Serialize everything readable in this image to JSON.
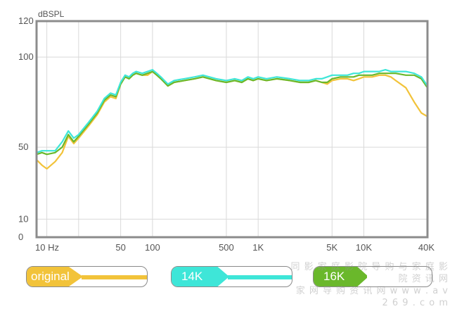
{
  "chart_data": {
    "type": "line",
    "ylabel": "dBSPL",
    "x_scale": "log",
    "xlim": [
      8,
      40000
    ],
    "ylim": [
      0,
      120
    ],
    "grid": true,
    "x_ticks": [
      {
        "label": "10 Hz",
        "value": 10
      },
      {
        "label": "50",
        "value": 50
      },
      {
        "label": "100",
        "value": 100
      },
      {
        "label": "500",
        "value": 500
      },
      {
        "label": "1K",
        "value": 1000
      },
      {
        "label": "5K",
        "value": 5000
      },
      {
        "label": "10K",
        "value": 10000
      },
      {
        "label": "40K",
        "value": 40000
      }
    ],
    "x_grid_extra": [
      20
    ],
    "y_ticks": [
      {
        "label": "120",
        "value": 120
      },
      {
        "label": "100",
        "value": 100
      },
      {
        "label": "50",
        "value": 50
      },
      {
        "label": "10",
        "value": 10
      },
      {
        "label": "0",
        "value": 0
      }
    ],
    "series": [
      {
        "name": "original",
        "color": "#f2c33a",
        "points": [
          [
            8,
            43
          ],
          [
            9,
            40
          ],
          [
            10,
            38
          ],
          [
            12,
            42
          ],
          [
            14,
            47
          ],
          [
            16,
            56
          ],
          [
            18,
            52
          ],
          [
            20,
            55
          ],
          [
            25,
            62
          ],
          [
            30,
            68
          ],
          [
            35,
            75
          ],
          [
            40,
            78
          ],
          [
            45,
            77
          ],
          [
            50,
            85
          ],
          [
            55,
            89
          ],
          [
            60,
            88
          ],
          [
            65,
            90
          ],
          [
            70,
            91
          ],
          [
            80,
            90
          ],
          [
            90,
            90
          ],
          [
            100,
            92
          ],
          [
            110,
            90
          ],
          [
            120,
            88
          ],
          [
            140,
            84
          ],
          [
            160,
            86
          ],
          [
            200,
            87
          ],
          [
            250,
            88
          ],
          [
            300,
            89
          ],
          [
            400,
            87
          ],
          [
            500,
            86
          ],
          [
            600,
            87
          ],
          [
            700,
            86
          ],
          [
            800,
            88
          ],
          [
            900,
            87
          ],
          [
            1000,
            88
          ],
          [
            1200,
            87
          ],
          [
            1500,
            88
          ],
          [
            2000,
            87
          ],
          [
            2500,
            86
          ],
          [
            3000,
            86
          ],
          [
            3500,
            87
          ],
          [
            4000,
            86
          ],
          [
            4500,
            85
          ],
          [
            5000,
            87
          ],
          [
            6000,
            88
          ],
          [
            7000,
            88
          ],
          [
            8000,
            87
          ],
          [
            9000,
            88
          ],
          [
            10000,
            89
          ],
          [
            12000,
            89
          ],
          [
            14000,
            90
          ],
          [
            16000,
            90
          ],
          [
            18000,
            89
          ],
          [
            20000,
            87
          ],
          [
            25000,
            83
          ],
          [
            30000,
            75
          ],
          [
            35000,
            69
          ],
          [
            40000,
            67
          ]
        ]
      },
      {
        "name": "16K",
        "color": "#6ab82b",
        "points": [
          [
            8,
            46
          ],
          [
            9,
            47
          ],
          [
            10,
            46
          ],
          [
            12,
            47
          ],
          [
            14,
            50
          ],
          [
            16,
            57
          ],
          [
            18,
            53
          ],
          [
            20,
            56
          ],
          [
            25,
            63
          ],
          [
            30,
            69
          ],
          [
            35,
            76
          ],
          [
            40,
            79
          ],
          [
            45,
            78
          ],
          [
            50,
            85
          ],
          [
            55,
            89
          ],
          [
            60,
            88
          ],
          [
            65,
            90
          ],
          [
            70,
            91
          ],
          [
            80,
            90
          ],
          [
            90,
            91
          ],
          [
            100,
            92
          ],
          [
            110,
            90
          ],
          [
            120,
            88
          ],
          [
            140,
            84
          ],
          [
            160,
            86
          ],
          [
            200,
            87
          ],
          [
            250,
            88
          ],
          [
            300,
            89
          ],
          [
            400,
            87
          ],
          [
            500,
            86
          ],
          [
            600,
            87
          ],
          [
            700,
            86
          ],
          [
            800,
            88
          ],
          [
            900,
            87
          ],
          [
            1000,
            88
          ],
          [
            1200,
            87
          ],
          [
            1500,
            88
          ],
          [
            2000,
            87
          ],
          [
            2500,
            86
          ],
          [
            3000,
            86
          ],
          [
            3500,
            87
          ],
          [
            4000,
            86
          ],
          [
            4500,
            86
          ],
          [
            5000,
            88
          ],
          [
            6000,
            89
          ],
          [
            7000,
            89
          ],
          [
            8000,
            89
          ],
          [
            9000,
            90
          ],
          [
            10000,
            90
          ],
          [
            12000,
            90
          ],
          [
            14000,
            91
          ],
          [
            16000,
            91
          ],
          [
            18000,
            91
          ],
          [
            20000,
            91
          ],
          [
            25000,
            90
          ],
          [
            30000,
            90
          ],
          [
            35000,
            88
          ],
          [
            40000,
            83
          ]
        ]
      },
      {
        "name": "14K",
        "color": "#3ee6d8",
        "points": [
          [
            8,
            47
          ],
          [
            9,
            48
          ],
          [
            10,
            48
          ],
          [
            12,
            48
          ],
          [
            14,
            53
          ],
          [
            16,
            59
          ],
          [
            18,
            55
          ],
          [
            20,
            57
          ],
          [
            25,
            64
          ],
          [
            30,
            70
          ],
          [
            35,
            77
          ],
          [
            40,
            80
          ],
          [
            45,
            79
          ],
          [
            50,
            86
          ],
          [
            55,
            90
          ],
          [
            60,
            89
          ],
          [
            65,
            91
          ],
          [
            70,
            92
          ],
          [
            80,
            91
          ],
          [
            90,
            92
          ],
          [
            100,
            93
          ],
          [
            110,
            91
          ],
          [
            120,
            89
          ],
          [
            140,
            85
          ],
          [
            160,
            87
          ],
          [
            200,
            88
          ],
          [
            250,
            89
          ],
          [
            300,
            90
          ],
          [
            400,
            88
          ],
          [
            500,
            87
          ],
          [
            600,
            88
          ],
          [
            700,
            87
          ],
          [
            800,
            89
          ],
          [
            900,
            88
          ],
          [
            1000,
            89
          ],
          [
            1200,
            88
          ],
          [
            1500,
            89
          ],
          [
            2000,
            88
          ],
          [
            2500,
            87
          ],
          [
            3000,
            87
          ],
          [
            3500,
            88
          ],
          [
            4000,
            88
          ],
          [
            4500,
            89
          ],
          [
            5000,
            90
          ],
          [
            6000,
            90
          ],
          [
            7000,
            90
          ],
          [
            8000,
            91
          ],
          [
            9000,
            91
          ],
          [
            10000,
            92
          ],
          [
            12000,
            92
          ],
          [
            14000,
            92
          ],
          [
            16000,
            93
          ],
          [
            18000,
            92
          ],
          [
            20000,
            92
          ],
          [
            25000,
            92
          ],
          [
            30000,
            91
          ],
          [
            35000,
            89
          ],
          [
            40000,
            84
          ]
        ]
      }
    ]
  },
  "legend": [
    {
      "label": "original",
      "color": "#f2c33a"
    },
    {
      "label": "14K",
      "color": "#3ee6d8"
    },
    {
      "label": "16K",
      "color": "#6ab82b"
    }
  ],
  "watermark": {
    "line1": "同 影 家 庭 影 院 导 购 与 家 庭 影 院 资 讯 网",
    "line2": "家 网 导 购 资 讯 网  w w w . a v 2 6 9 . c o m"
  }
}
